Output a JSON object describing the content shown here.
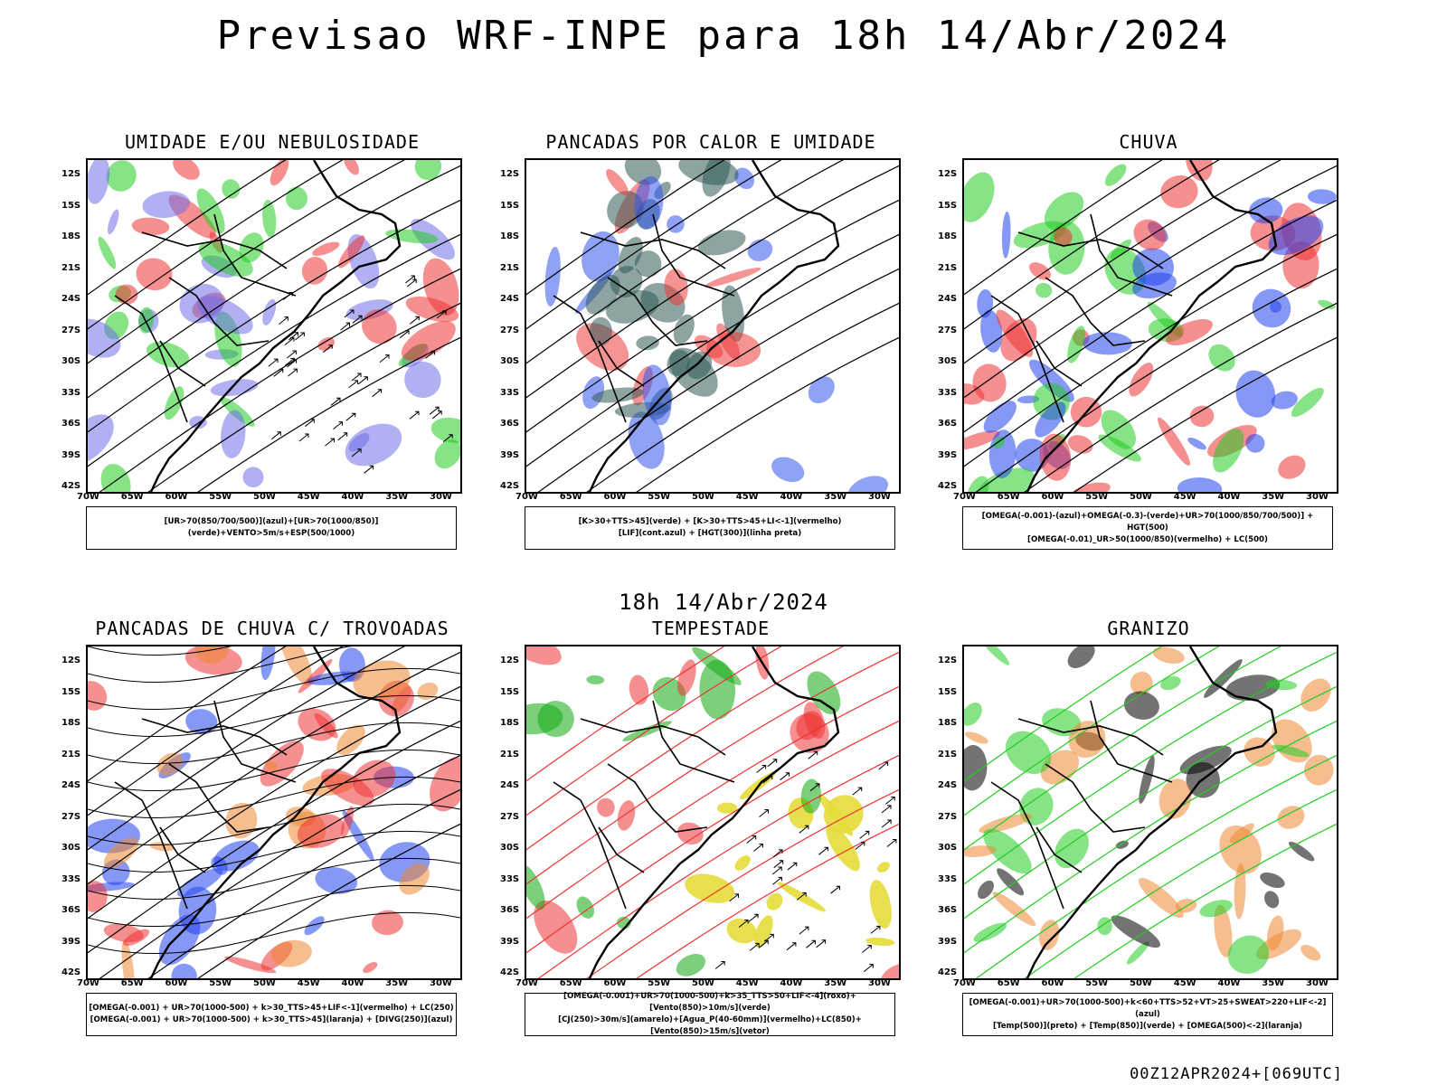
{
  "title": "Previsao WRF-INPE  para 18h 14/Abr/2024",
  "mid_title": "18h 14/Abr/2024",
  "footer": "00Z12APR2024+[069UTC]",
  "lat_labels": [
    "12S",
    "15S",
    "18S",
    "21S",
    "24S",
    "27S",
    "30S",
    "33S",
    "36S",
    "39S",
    "42S"
  ],
  "lon_labels": [
    "70W",
    "65W",
    "60W",
    "55W",
    "50W",
    "45W",
    "40W",
    "35W",
    "30W"
  ],
  "panels": [
    {
      "title": "UMIDADE E/OU NEBULOSIDADE",
      "legend": [
        "[UR>70(850/700/500)](azul)+[UR>70(1000/850)](verde)+VENTO>5m/s+ESP(500/1000)"
      ],
      "colors": [
        "#6f6fe8",
        "#22cc22",
        "#ee3333"
      ]
    },
    {
      "title": "PANCADAS POR CALOR E UMIDADE",
      "legend": [
        "[K>30+TTS>45](verde)  +  [K>30+TTS>45+LI<-1](vermelho)",
        "[LIF](cont.azul)  +  [HGT(300)](linha preta)"
      ],
      "colors": [
        "#2f5a55",
        "#ee3b3b",
        "#3355ee"
      ]
    },
    {
      "title": "CHUVA",
      "legend": [
        "[OMEGA(-0.001)-(azul)+OMEGA(-0.3)-(verde)+UR>70(1000/850/700/500)]  +  HGT(500)",
        "[OMEGA(-0.01)_UR>50(1000/850)(vermelho)  +  LC(500)"
      ],
      "colors": [
        "#2244ee",
        "#22cc22",
        "#ee3333"
      ]
    },
    {
      "title": "PANCADAS DE CHUVA C/ TROVOADAS",
      "legend": [
        "[OMEGA(-0.001)  +  UR>70(1000-500)  +  k>30_TTS>45+LIF<-1](vermelho)  +  LC(250)",
        "[OMEGA(-0.001)  +  UR>70(1000-500)  +  k>30_TTS>45](laranja)  +  [DIVG(250)](azul)"
      ],
      "colors": [
        "#ee3333",
        "#ee8833",
        "#2244ee"
      ]
    },
    {
      "title": "TEMPESTADE",
      "legend": [
        "[OMEGA(-0.001)+UR>70(1000-500)+k>35_TTS>50+LIF<-4](roxo)+[Vento(850)>10m/s](verde)",
        "[CJ(250)>30m/s](amarelo)+[Agua_P(40-60mm)](vermelho)+LC(850)+[Vento(850)>15m/s](vetor)"
      ],
      "colors": [
        "#e6dc3a",
        "#ee3333",
        "#11aa11"
      ]
    },
    {
      "title": "GRANIZO",
      "legend": [
        "[OMEGA(-0.001)+UR>70(1000-500)+k<60+TTS>52+VT>25+SWEAT>220+LIF<-2](azul)",
        "[Temp(500)](preto)  +  [Temp(850)](verde)  +  [OMEGA(500)<-2](laranja)"
      ],
      "colors": [
        "#22cc22",
        "#ee8833",
        "#000000"
      ]
    }
  ]
}
